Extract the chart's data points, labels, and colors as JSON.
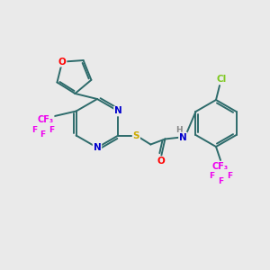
{
  "background_color": "#eaeaea",
  "bond_color": "#2d6b6b",
  "atom_colors": {
    "O": "#ff0000",
    "N": "#0000cd",
    "S": "#ccaa00",
    "F": "#ee00ee",
    "Cl": "#7ec820",
    "H": "#888888",
    "C": "#2d6b6b"
  },
  "font_size": 7.5,
  "line_width": 1.4
}
